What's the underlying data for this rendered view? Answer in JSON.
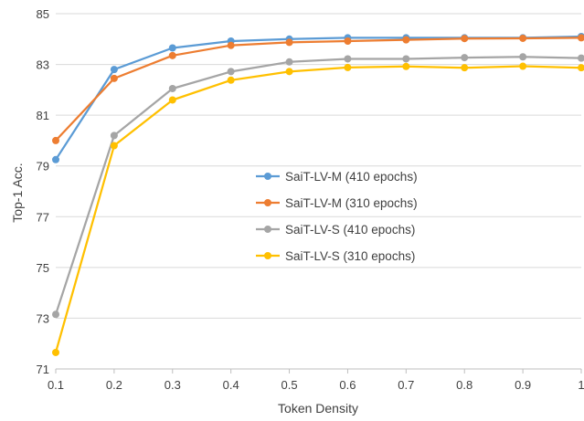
{
  "chart_data": {
    "type": "line",
    "title": "",
    "xlabel": "Token Density",
    "ylabel": "Top-1 Acc.",
    "x": [
      0.1,
      0.2,
      0.3,
      0.4,
      0.5,
      0.6,
      0.7,
      0.8,
      0.9,
      1
    ],
    "x_tick_labels": [
      "0.1",
      "0.2",
      "0.3",
      "0.4",
      "0.5",
      "0.6",
      "0.7",
      "0.8",
      "0.9",
      "1"
    ],
    "xlim": [
      0.1,
      1
    ],
    "ylim": [
      71,
      85
    ],
    "y_ticks": [
      71,
      73,
      75,
      77,
      79,
      81,
      83,
      85
    ],
    "grid": "horizontal",
    "legend_position": "center",
    "series": [
      {
        "name": "SaiT-LV-M (410 epochs)",
        "color": "#5B9BD5",
        "values": [
          79.25,
          82.8,
          83.65,
          83.92,
          84.0,
          84.05,
          84.05,
          84.05,
          84.05,
          84.1
        ]
      },
      {
        "name": "SaiT-LV-M (310 epochs)",
        "color": "#ED7D31",
        "values": [
          80.0,
          82.45,
          83.35,
          83.75,
          83.87,
          83.92,
          83.97,
          84.02,
          84.03,
          84.05
        ]
      },
      {
        "name": "SaiT-LV-S (410 epochs)",
        "color": "#A5A5A5",
        "values": [
          73.15,
          80.2,
          82.05,
          82.72,
          83.1,
          83.22,
          83.22,
          83.27,
          83.3,
          83.25
        ]
      },
      {
        "name": "SaiT-LV-S (310 epochs)",
        "color": "#FFC000",
        "values": [
          71.65,
          79.8,
          81.6,
          82.38,
          82.72,
          82.88,
          82.92,
          82.87,
          82.93,
          82.87
        ]
      }
    ]
  }
}
